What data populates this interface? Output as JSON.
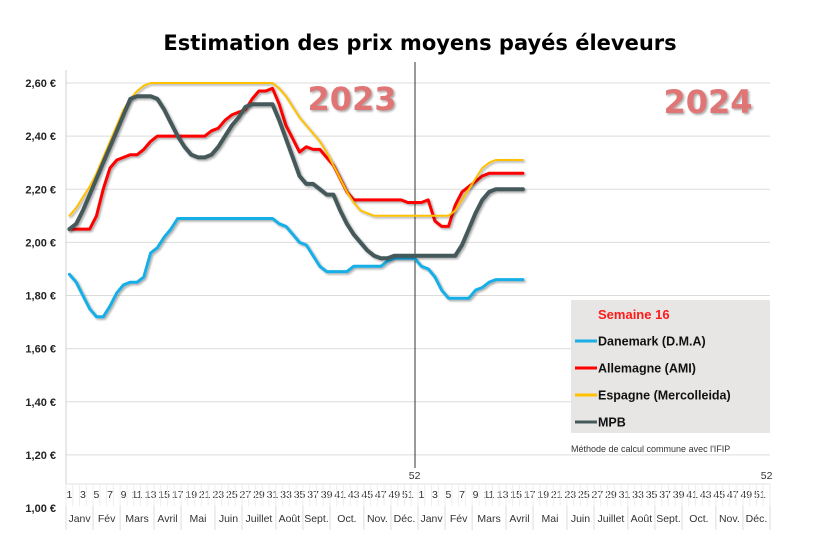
{
  "chart_data": {
    "type": "line",
    "title": "Estimation des prix moyens payés éleveurs",
    "xlabel": "",
    "ylabel": "",
    "ylim": [
      1.0,
      2.6
    ],
    "y_ticks": [
      "1,00 €",
      "1,20 €",
      "1,40 €",
      "1,60 €",
      "1,80 €",
      "2,00 €",
      "2,20 €",
      "2,40 €",
      "2,60 €"
    ],
    "y_tick_values": [
      1.0,
      1.2,
      1.4,
      1.6,
      1.8,
      2.0,
      2.2,
      2.4,
      2.6
    ],
    "grid": true,
    "x_week_count": 104,
    "x_week_labels": [
      "1",
      "3",
      "5",
      "7",
      "9",
      "11",
      "13",
      "15",
      "17",
      "19",
      "21",
      "23",
      "25",
      "27",
      "29",
      "31",
      "33",
      "35",
      "37",
      "39",
      "41",
      "43",
      "45",
      "47",
      "49",
      "51",
      "52",
      "1",
      "3",
      "5",
      "7",
      "9",
      "11",
      "13",
      "15",
      "17",
      "19",
      "21",
      "23",
      "25",
      "27",
      "29",
      "31",
      "33",
      "35",
      "37",
      "39",
      "41",
      "43",
      "45",
      "47",
      "49",
      "51",
      "52"
    ],
    "months": [
      "Janv",
      "Fév",
      "Mars",
      "Avril",
      "Mai",
      "Juin",
      "Juillet",
      "Août",
      "Sept.",
      "Oct.",
      "Nov.",
      "Déc.",
      "Janv",
      "Fév",
      "Mars",
      "Avril",
      "Mai",
      "Juin",
      "Juillet",
      "Août",
      "Sept.",
      "Oct.",
      "Nov.",
      "Déc."
    ],
    "year_labels": [
      "2023",
      "2024"
    ],
    "year_divider_after_week": 52,
    "legend": {
      "title": "Semaine 16",
      "placement": "right",
      "note": "Méthode de calcul commune avec l'IFIP"
    },
    "series": [
      {
        "name": "Danemark (D.M.A)",
        "color": "#19aee6",
        "width": 3,
        "values": [
          1.88,
          1.85,
          1.8,
          1.75,
          1.72,
          1.72,
          1.76,
          1.81,
          1.84,
          1.85,
          1.85,
          1.87,
          1.96,
          1.98,
          2.02,
          2.05,
          2.09,
          2.09,
          2.09,
          2.09,
          2.09,
          2.09,
          2.09,
          2.09,
          2.09,
          2.09,
          2.09,
          2.09,
          2.09,
          2.09,
          2.09,
          2.07,
          2.06,
          2.03,
          2.0,
          1.99,
          1.95,
          1.91,
          1.89,
          1.89,
          1.89,
          1.89,
          1.91,
          1.91,
          1.91,
          1.91,
          1.91,
          1.93,
          1.94,
          1.94,
          1.94,
          1.94,
          1.91,
          1.9,
          1.87,
          1.82,
          1.79,
          1.79,
          1.79,
          1.79,
          1.82,
          1.83,
          1.85,
          1.86,
          1.86,
          1.86,
          1.86,
          1.86
        ]
      },
      {
        "name": "Allemagne (AMI)",
        "color": "#ff0000",
        "width": 3,
        "values": [
          2.05,
          2.05,
          2.05,
          2.05,
          2.1,
          2.2,
          2.28,
          2.31,
          2.32,
          2.33,
          2.33,
          2.35,
          2.38,
          2.4,
          2.4,
          2.4,
          2.4,
          2.4,
          2.4,
          2.4,
          2.4,
          2.42,
          2.43,
          2.46,
          2.48,
          2.49,
          2.5,
          2.54,
          2.57,
          2.57,
          2.58,
          2.52,
          2.44,
          2.39,
          2.34,
          2.36,
          2.35,
          2.35,
          2.32,
          2.29,
          2.24,
          2.19,
          2.16,
          2.16,
          2.16,
          2.16,
          2.16,
          2.16,
          2.16,
          2.16,
          2.15,
          2.15,
          2.15,
          2.16,
          2.08,
          2.06,
          2.06,
          2.14,
          2.19,
          2.21,
          2.23,
          2.25,
          2.26,
          2.26,
          2.26,
          2.26,
          2.26,
          2.26
        ]
      },
      {
        "name": "Espagne (Mercolleida)",
        "color": "#ffc000",
        "width": 2,
        "values": [
          2.1,
          2.13,
          2.17,
          2.21,
          2.26,
          2.32,
          2.38,
          2.44,
          2.5,
          2.54,
          2.57,
          2.59,
          2.6,
          2.6,
          2.6,
          2.6,
          2.6,
          2.6,
          2.6,
          2.6,
          2.6,
          2.6,
          2.6,
          2.6,
          2.6,
          2.6,
          2.6,
          2.6,
          2.6,
          2.6,
          2.6,
          2.58,
          2.55,
          2.51,
          2.47,
          2.44,
          2.41,
          2.38,
          2.34,
          2.29,
          2.24,
          2.19,
          2.15,
          2.12,
          2.11,
          2.1,
          2.1,
          2.1,
          2.1,
          2.1,
          2.1,
          2.1,
          2.1,
          2.1,
          2.1,
          2.1,
          2.1,
          2.12,
          2.16,
          2.2,
          2.24,
          2.28,
          2.3,
          2.31,
          2.31,
          2.31,
          2.31,
          2.31
        ]
      },
      {
        "name": "MPB",
        "color": "#44595a",
        "width": 4,
        "values": [
          2.05,
          2.07,
          2.12,
          2.18,
          2.24,
          2.3,
          2.36,
          2.42,
          2.48,
          2.54,
          2.55,
          2.55,
          2.55,
          2.54,
          2.5,
          2.45,
          2.4,
          2.36,
          2.33,
          2.32,
          2.32,
          2.33,
          2.36,
          2.4,
          2.44,
          2.47,
          2.51,
          2.52,
          2.52,
          2.52,
          2.52,
          2.46,
          2.39,
          2.32,
          2.25,
          2.22,
          2.22,
          2.2,
          2.18,
          2.18,
          2.12,
          2.07,
          2.03,
          2.0,
          1.97,
          1.95,
          1.94,
          1.94,
          1.95,
          1.95,
          1.95,
          1.95,
          1.95,
          1.95,
          1.95,
          1.95,
          1.95,
          1.95,
          1.99,
          2.05,
          2.11,
          2.16,
          2.19,
          2.2,
          2.2,
          2.2,
          2.2,
          2.2
        ]
      }
    ]
  }
}
